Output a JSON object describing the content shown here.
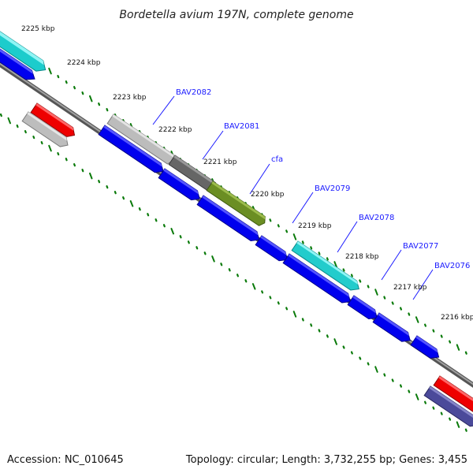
{
  "title": "Bordetella avium 197N, complete genome",
  "footer": {
    "accession": "Accession: NC_010645",
    "summary": "Topology: circular; Length: 3,732,255 bp; Genes: 3,455"
  },
  "ticks": [
    {
      "label": "2225 kbp"
    },
    {
      "label": "2224 kbp"
    },
    {
      "label": "2223 kbp"
    },
    {
      "label": "2222 kbp"
    },
    {
      "label": "2221 kbp"
    },
    {
      "label": "2220 kbp"
    },
    {
      "label": "2219 kbp"
    },
    {
      "label": "2218 kbp"
    },
    {
      "label": "2217 kbp"
    },
    {
      "label": "2216 kbp"
    }
  ],
  "gene_labels": [
    "BAV2082",
    "BAV2081",
    "cfa",
    "BAV2079",
    "BAV2078",
    "BAV2077",
    "BAV2076"
  ],
  "colors": {
    "backbone": "#7a7a7a",
    "cds_blue": "#0000ee",
    "cds_cyan": "#22d3d3",
    "cds_red": "#ee0000",
    "cds_gray": "#bdbdbd",
    "cds_dark_gray": "#666666",
    "cds_olive": "#6b8e23",
    "cds_slate": "#4b4a9a",
    "tick_green": "#0a7a0a",
    "label_blue": "#1a1aff"
  }
}
